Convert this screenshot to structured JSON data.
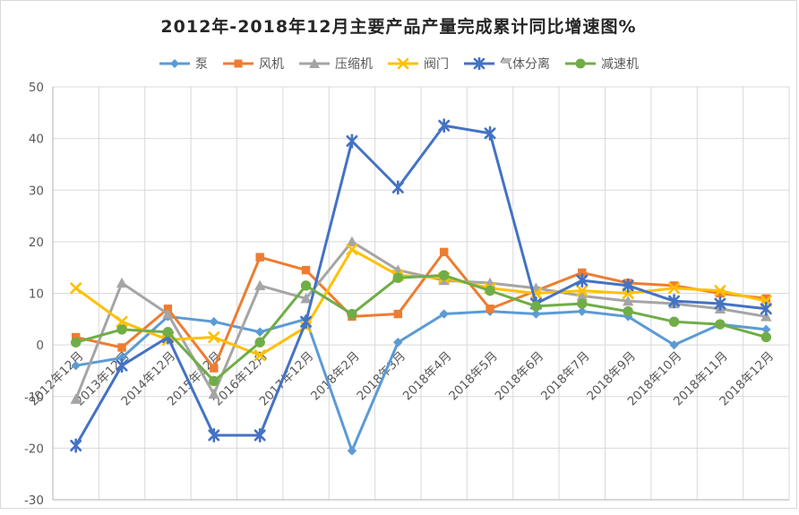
{
  "chart_data": {
    "type": "line",
    "title": "2012年-2018年12月主要产品产量完成累计同比增速图%",
    "categories": [
      "2012年12月",
      "2013年12月",
      "2014年12月",
      "2015年12月",
      "2016年12月",
      "2017年12月",
      "2018年2月",
      "2018年3月",
      "2018年4月",
      "2018年5月",
      "2018年6月",
      "2018年7月",
      "2018年9月",
      "2018年10月",
      "2018年11月",
      "2018年12月"
    ],
    "series": [
      {
        "name": "泵",
        "color": "#5B9BD5",
        "marker": "diamond",
        "values": [
          -4,
          -2.5,
          5.5,
          4.5,
          2.5,
          5,
          -20.5,
          0.5,
          6,
          6.5,
          6,
          6.5,
          5.5,
          0,
          4,
          3
        ]
      },
      {
        "name": "风机",
        "color": "#ED7D31",
        "marker": "square",
        "values": [
          1.5,
          -0.5,
          7,
          -4.5,
          17,
          14.5,
          5.5,
          6,
          18,
          7,
          10.5,
          14,
          12,
          11.5,
          10,
          9
        ]
      },
      {
        "name": "压缩机",
        "color": "#A5A5A5",
        "marker": "triangle",
        "values": [
          -10.5,
          12,
          6,
          -9.5,
          11.5,
          9,
          20,
          14.5,
          12.5,
          12,
          11,
          9.5,
          8.5,
          8,
          7,
          5.5
        ]
      },
      {
        "name": "阀门",
        "color": "#FFC000",
        "marker": "x",
        "values": [
          11,
          4.5,
          1,
          1.5,
          -2,
          3.5,
          18.5,
          13.5,
          13,
          11,
          10,
          10.5,
          10,
          11,
          10.5,
          8.5
        ]
      },
      {
        "name": "气体分离",
        "color": "#4472C4",
        "marker": "asterisk",
        "values": [
          -19.5,
          -4,
          1.5,
          -17.5,
          -17.5,
          4.5,
          39.5,
          30.5,
          42.5,
          41,
          8,
          12.5,
          11.5,
          8.5,
          8,
          7
        ]
      },
      {
        "name": "减速机",
        "color": "#70AD47",
        "marker": "circle",
        "values": [
          0.5,
          3,
          2.5,
          -7,
          0.5,
          11.5,
          6,
          13,
          13.5,
          10.5,
          7.5,
          8,
          6.5,
          4.5,
          4,
          1.5
        ]
      }
    ],
    "ylim": [
      -30,
      50
    ],
    "ytick_step": 10,
    "yticks": [
      "50",
      "40",
      "30",
      "20",
      "10",
      "0",
      "-10",
      "-20",
      "-30"
    ],
    "grid": true,
    "legend_position": "top",
    "colors": {
      "grid": "#D9D9D9",
      "axis": "#BFBFBF",
      "tick_label": "#595959",
      "title": "#262626"
    }
  }
}
